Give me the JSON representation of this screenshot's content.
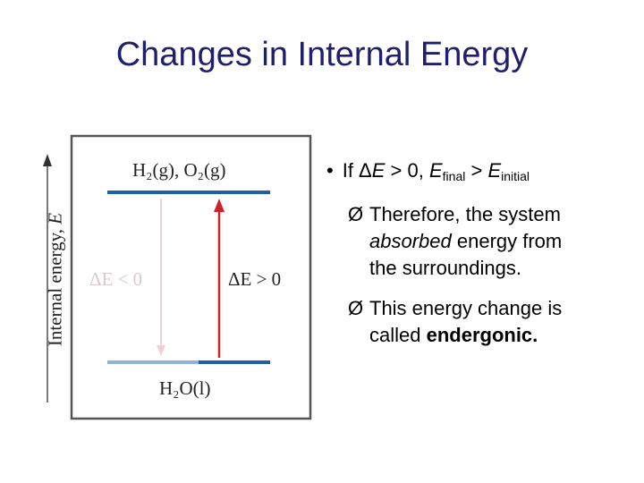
{
  "slide": {
    "title": "Changes in Internal Energy"
  },
  "diagram": {
    "axis_label_prefix": "Internal energy, ",
    "axis_label_var": "E",
    "top_level_label": "H₂(g), O₂(g)",
    "bottom_level_label": "H₂O(l)",
    "delta_negative_label": "ΔE < 0",
    "delta_positive_label": "ΔE > 0",
    "colors": {
      "level_line": "#1f5fa8",
      "arrow_up": "#d0202a",
      "arrow_down": "#e8c8cc",
      "frame": "#555555"
    }
  },
  "bullets": {
    "main": {
      "prefix": "If Δ",
      "e1": "E",
      "cond": " > 0, ",
      "e2": "E",
      "sub_final": "final",
      "gt": " > ",
      "e3": "E",
      "sub_initial": "initial"
    },
    "sub1": {
      "arrow": "Ø",
      "line1": "Therefore, the system",
      "line2_italic": "absorbed",
      "line2_rest": " energy from",
      "line3": "the surroundings."
    },
    "sub2": {
      "arrow": "Ø",
      "line1": "This energy change is",
      "line2_prefix": "called ",
      "line2_bold": "endergonic."
    }
  }
}
